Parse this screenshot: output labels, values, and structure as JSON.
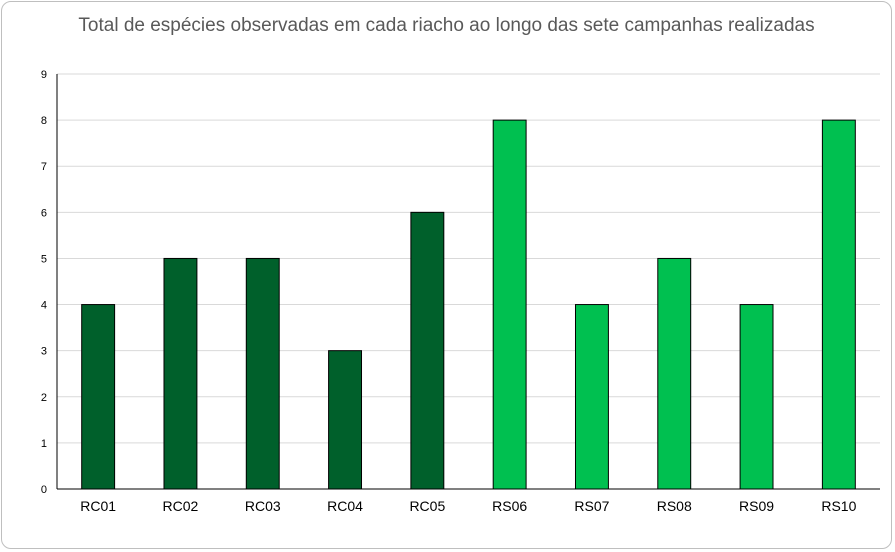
{
  "chart_data": {
    "type": "bar",
    "title": "Total de espécies observadas em cada riacho ao longo das sete campanhas realizadas",
    "xlabel": "",
    "ylabel": "",
    "categories": [
      "RC01",
      "RC02",
      "RC03",
      "RC04",
      "RC05",
      "RS06",
      "RS07",
      "RS08",
      "RS09",
      "RS10"
    ],
    "values": [
      4,
      5,
      5,
      3,
      6,
      8,
      4,
      5,
      4,
      8
    ],
    "bar_colors": [
      "#00602b",
      "#00602b",
      "#00602b",
      "#00602b",
      "#00602b",
      "#00c050",
      "#00c050",
      "#00c050",
      "#00c050",
      "#00c050"
    ],
    "ylim": [
      0,
      9
    ],
    "yticks": [
      0,
      1,
      2,
      3,
      4,
      5,
      6,
      7,
      8,
      9
    ],
    "grid": true,
    "legend": "none"
  }
}
